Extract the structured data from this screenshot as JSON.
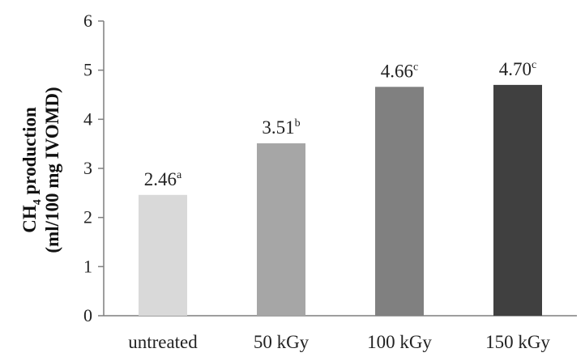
{
  "chart_data": {
    "type": "bar",
    "categories": [
      "untreated",
      "50 kGy",
      "100 kGy",
      "150 kGy"
    ],
    "values": [
      2.46,
      3.51,
      4.66,
      4.7
    ],
    "data_labels": [
      "2.46",
      "3.51",
      "4.66",
      "4.70"
    ],
    "significance_letters": [
      "a",
      "b",
      "c",
      "c"
    ],
    "bar_colors": [
      "#d9d9d9",
      "#a6a6a6",
      "#808080",
      "#404040"
    ],
    "title": "",
    "xlabel": "",
    "ylabel": {
      "line1_prefix": "CH",
      "line1_subscript": "4",
      "line1_suffix": " production",
      "line2": "(ml/100 mg IVOMD)"
    },
    "ylim": [
      0,
      6
    ],
    "yticks": [
      "0",
      "1",
      "2",
      "3",
      "4",
      "5",
      "6"
    ],
    "grid": false,
    "legend": "none"
  }
}
